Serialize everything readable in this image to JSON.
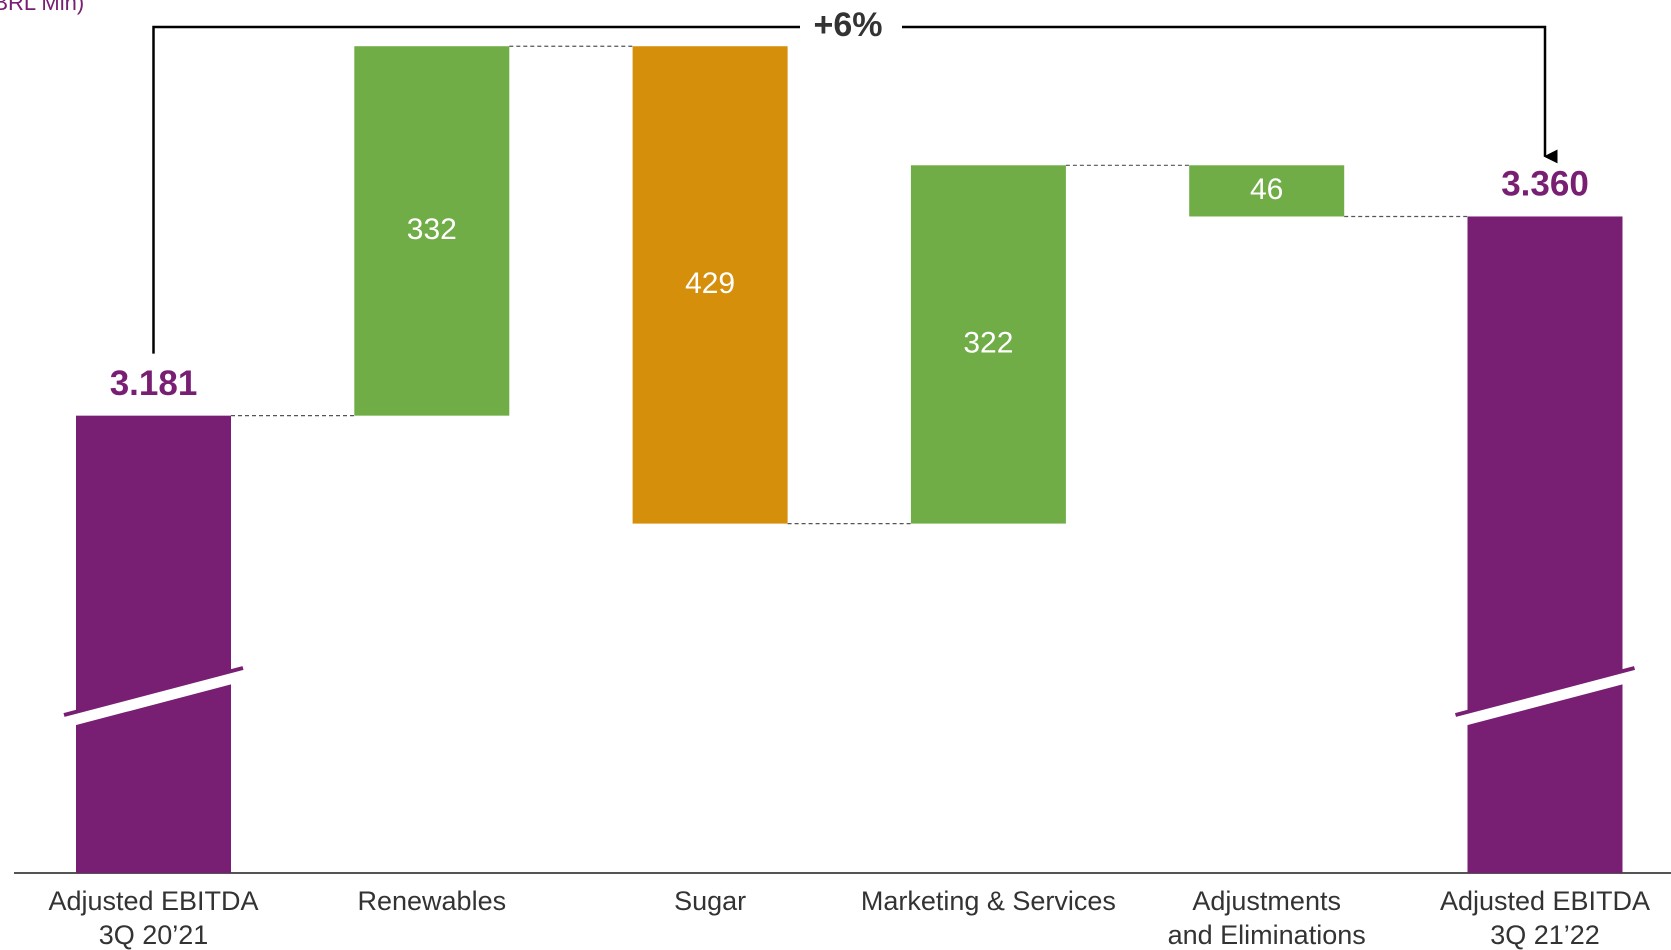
{
  "chart_data": {
    "type": "waterfall",
    "subtitle": "(BRL Mln)",
    "annotation": "+6%",
    "categories": [
      "Adjusted EBITDA\n3Q 20’21",
      "Renewables",
      "Sugar",
      "Marketing & Services",
      "Adjustments\nand Eliminations",
      "Adjusted EBITDA\n3Q 21’22"
    ],
    "measure": [
      "absolute",
      "relative",
      "relative",
      "relative",
      "relative",
      "absolute"
    ],
    "values": [
      3181,
      332,
      -429,
      322,
      -46,
      3360
    ],
    "value_labels": [
      "3.181",
      "332",
      "429",
      "322",
      "46",
      "3.360"
    ],
    "colors": [
      "#781e73",
      "#70ad47",
      "#d68f0a",
      "#70ad47",
      "#70ad47",
      "#781e73"
    ],
    "ylim": [
      2770,
      3515
    ],
    "axis_break": true
  }
}
